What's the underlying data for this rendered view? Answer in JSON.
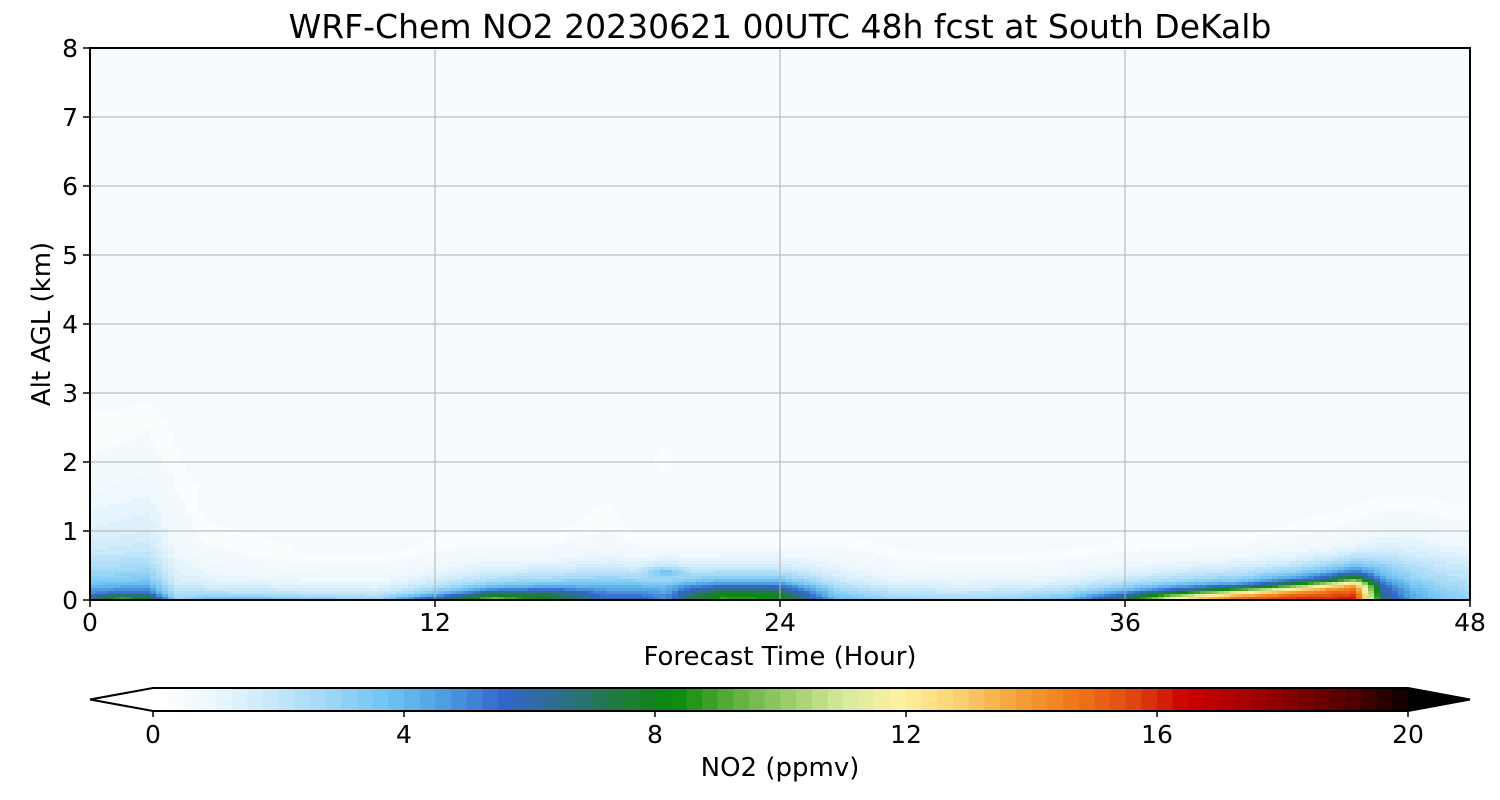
{
  "chart_data": {
    "type": "contourf",
    "title": "WRF-Chem NO2  20230621 00UTC 48h fcst at South DeKalb",
    "xlabel": "Forecast Time (Hour)",
    "ylabel": "Alt AGL (km)",
    "xlim": [
      0,
      48
    ],
    "ylim": [
      0,
      8
    ],
    "xticks": [
      0,
      12,
      24,
      36,
      48
    ],
    "yticks": [
      0,
      1,
      2,
      3,
      4,
      5,
      6,
      7,
      8
    ],
    "grid": true,
    "colorbar": {
      "label": "NO2  (ppmv)",
      "orientation": "horizontal",
      "location": "bottom",
      "range": [
        0,
        20
      ],
      "ticks": [
        0,
        4,
        8,
        12,
        16,
        20
      ],
      "extend": "both",
      "colors": [
        "#ffffff",
        "#eaf6fd",
        "#c6e8fa",
        "#9cd6f6",
        "#6ec3f2",
        "#4d9ddf",
        "#3366cc",
        "#2e6e8a",
        "#1f7a40",
        "#0a8a0a",
        "#5aad3a",
        "#9ccd6a",
        "#d9ea9e",
        "#fff2a0",
        "#fbd070",
        "#f5a23a",
        "#f07818",
        "#e04a10",
        "#cc0000",
        "#a80000",
        "#7a0000",
        "#4a0000",
        "#000000"
      ]
    },
    "profiles": {
      "hours": [
        0,
        1,
        2,
        3,
        4,
        6,
        8,
        10,
        12,
        14,
        16,
        18,
        19,
        20,
        21,
        22,
        24,
        26,
        28,
        30,
        32,
        34,
        36,
        38,
        40,
        42,
        43,
        44,
        45,
        46,
        47,
        48
      ],
      "levels_km": [
        0,
        0.05,
        0.1,
        0.15,
        0.2,
        0.25,
        0.3,
        0.4,
        0.5,
        0.6,
        0.7,
        0.8,
        1.0,
        1.3,
        1.6,
        2.0,
        2.5,
        3.0,
        4.0,
        5.0,
        6.0,
        7.0,
        8.0
      ],
      "no2_ppmv": [
        [
          6.0,
          6.0,
          5.0,
          4.5,
          4.0,
          3.6,
          3.2,
          2.8,
          2.4,
          2.1,
          1.9,
          1.6,
          1.3,
          1.0,
          0.7,
          0.5,
          0.4,
          0.3,
          0.2,
          0.1,
          0.1,
          0.1,
          0.1
        ],
        [
          10.0,
          7.5,
          5.6,
          4.8,
          4.2,
          3.7,
          3.3,
          2.9,
          2.5,
          2.2,
          1.9,
          1.7,
          1.4,
          1.1,
          0.8,
          0.6,
          0.4,
          0.3,
          0.2,
          0.1,
          0.1,
          0.1,
          0.1
        ],
        [
          9.0,
          7.0,
          5.5,
          4.8,
          4.2,
          3.8,
          3.4,
          3.0,
          2.6,
          2.3,
          2.0,
          1.8,
          1.5,
          1.2,
          0.9,
          0.6,
          0.5,
          0.3,
          0.2,
          0.1,
          0.1,
          0.1,
          0.1
        ],
        [
          3.0,
          2.6,
          2.3,
          2.1,
          1.9,
          1.7,
          1.5,
          1.3,
          1.2,
          1.0,
          0.9,
          0.8,
          0.7,
          0.6,
          0.5,
          0.4,
          0.3,
          0.2,
          0.2,
          0.1,
          0.1,
          0.1,
          0.1
        ],
        [
          4.0,
          3.0,
          2.4,
          2.0,
          1.7,
          1.4,
          1.2,
          1.0,
          0.8,
          0.7,
          0.6,
          0.5,
          0.4,
          0.3,
          0.3,
          0.2,
          0.2,
          0.1,
          0.1,
          0.1,
          0.1,
          0.1,
          0.1
        ],
        [
          4.0,
          3.0,
          2.2,
          1.8,
          1.5,
          1.2,
          1.0,
          0.8,
          0.6,
          0.5,
          0.4,
          0.4,
          0.3,
          0.2,
          0.2,
          0.1,
          0.1,
          0.1,
          0.1,
          0.1,
          0.1,
          0.1,
          0.1
        ],
        [
          3.5,
          2.6,
          2.0,
          1.6,
          1.3,
          1.1,
          0.9,
          0.7,
          0.5,
          0.4,
          0.3,
          0.3,
          0.2,
          0.2,
          0.1,
          0.1,
          0.1,
          0.1,
          0.1,
          0.1,
          0.1,
          0.1,
          0.1
        ],
        [
          3.0,
          2.4,
          1.8,
          1.5,
          1.2,
          1.0,
          0.8,
          0.6,
          0.5,
          0.4,
          0.3,
          0.2,
          0.2,
          0.1,
          0.1,
          0.1,
          0.1,
          0.1,
          0.1,
          0.1,
          0.1,
          0.1,
          0.1
        ],
        [
          7.0,
          5.0,
          3.6,
          2.8,
          2.2,
          1.8,
          1.5,
          1.1,
          0.8,
          0.6,
          0.5,
          0.4,
          0.3,
          0.2,
          0.1,
          0.1,
          0.1,
          0.1,
          0.1,
          0.1,
          0.1,
          0.1,
          0.1
        ],
        [
          10.0,
          8.5,
          6.5,
          5.0,
          3.8,
          3.0,
          2.4,
          1.7,
          1.2,
          0.9,
          0.7,
          0.5,
          0.3,
          0.2,
          0.1,
          0.1,
          0.1,
          0.1,
          0.1,
          0.1,
          0.1,
          0.1,
          0.1
        ],
        [
          8.0,
          7.5,
          6.8,
          5.5,
          4.3,
          3.4,
          2.7,
          1.9,
          1.3,
          0.9,
          0.7,
          0.5,
          0.3,
          0.2,
          0.1,
          0.1,
          0.1,
          0.1,
          0.1,
          0.1,
          0.1,
          0.1,
          0.1
        ],
        [
          6.0,
          5.5,
          5.0,
          4.5,
          4.0,
          3.5,
          3.0,
          2.3,
          1.7,
          1.2,
          0.9,
          0.7,
          0.5,
          0.4,
          0.3,
          0.2,
          0.2,
          0.1,
          0.1,
          0.1,
          0.1,
          0.1,
          0.1
        ],
        [
          6.0,
          5.5,
          5.0,
          4.5,
          4.0,
          3.4,
          2.8,
          2.0,
          1.4,
          1.0,
          0.7,
          0.5,
          0.3,
          0.2,
          0.2,
          0.1,
          0.1,
          0.1,
          0.1,
          0.1,
          0.1,
          0.1,
          0.1
        ],
        [
          5.0,
          4.8,
          4.5,
          4.2,
          3.8,
          3.2,
          2.6,
          4.0,
          2.0,
          1.2,
          0.8,
          0.5,
          0.3,
          0.2,
          0.1,
          0.5,
          0.2,
          0.1,
          0.1,
          0.1,
          0.1,
          0.1,
          0.1
        ],
        [
          7.5,
          7.0,
          6.5,
          5.8,
          5.0,
          4.0,
          3.2,
          2.2,
          1.5,
          1.0,
          0.7,
          0.5,
          0.3,
          0.2,
          0.1,
          0.1,
          0.1,
          0.1,
          0.1,
          0.1,
          0.1,
          0.1,
          0.1
        ],
        [
          9.0,
          8.5,
          7.8,
          6.8,
          5.6,
          4.5,
          3.5,
          2.4,
          1.6,
          1.1,
          0.8,
          0.5,
          0.3,
          0.2,
          0.1,
          0.1,
          0.1,
          0.1,
          0.1,
          0.1,
          0.1,
          0.1,
          0.1
        ],
        [
          8.5,
          8.0,
          7.5,
          6.5,
          5.5,
          4.4,
          3.4,
          2.4,
          1.6,
          1.1,
          0.8,
          0.5,
          0.3,
          0.2,
          0.1,
          0.1,
          0.1,
          0.1,
          0.1,
          0.1,
          0.1,
          0.1,
          0.1
        ],
        [
          4.0,
          3.6,
          3.2,
          2.8,
          2.4,
          2.0,
          1.7,
          1.3,
          1.0,
          0.8,
          0.6,
          0.5,
          0.3,
          0.2,
          0.1,
          0.1,
          0.1,
          0.1,
          0.1,
          0.1,
          0.1,
          0.1,
          0.1
        ],
        [
          3.0,
          2.6,
          2.2,
          1.9,
          1.6,
          1.3,
          1.1,
          0.8,
          0.6,
          0.5,
          0.4,
          0.3,
          0.2,
          0.1,
          0.1,
          0.1,
          0.1,
          0.1,
          0.1,
          0.1,
          0.1,
          0.1,
          0.1
        ],
        [
          2.8,
          2.4,
          2.0,
          1.7,
          1.4,
          1.2,
          1.0,
          0.7,
          0.5,
          0.4,
          0.3,
          0.2,
          0.2,
          0.1,
          0.1,
          0.1,
          0.1,
          0.1,
          0.1,
          0.1,
          0.1,
          0.1,
          0.1
        ],
        [
          3.0,
          2.6,
          2.2,
          1.8,
          1.5,
          1.2,
          1.0,
          0.7,
          0.5,
          0.4,
          0.3,
          0.2,
          0.2,
          0.1,
          0.1,
          0.1,
          0.1,
          0.1,
          0.1,
          0.1,
          0.1,
          0.1,
          0.1
        ],
        [
          4.0,
          3.4,
          2.8,
          2.3,
          1.9,
          1.5,
          1.2,
          0.9,
          0.6,
          0.5,
          0.4,
          0.3,
          0.2,
          0.2,
          0.1,
          0.1,
          0.1,
          0.1,
          0.1,
          0.1,
          0.1,
          0.1,
          0.1
        ],
        [
          7.5,
          6.5,
          5.0,
          3.8,
          3.0,
          2.4,
          1.9,
          1.3,
          0.9,
          0.6,
          0.5,
          0.4,
          0.3,
          0.2,
          0.1,
          0.1,
          0.1,
          0.1,
          0.1,
          0.1,
          0.1,
          0.1,
          0.1
        ],
        [
          13.0,
          11.0,
          8.5,
          6.0,
          4.5,
          3.4,
          2.6,
          1.8,
          1.2,
          0.8,
          0.6,
          0.4,
          0.3,
          0.2,
          0.1,
          0.1,
          0.1,
          0.1,
          0.1,
          0.1,
          0.1,
          0.1,
          0.1
        ],
        [
          15.5,
          14.0,
          12.0,
          9.0,
          6.0,
          4.2,
          3.2,
          2.2,
          1.5,
          1.0,
          0.7,
          0.5,
          0.3,
          0.2,
          0.1,
          0.1,
          0.1,
          0.1,
          0.1,
          0.1,
          0.1,
          0.1,
          0.1
        ],
        [
          16.0,
          15.5,
          14.5,
          12.5,
          10.0,
          7.0,
          5.0,
          3.2,
          2.1,
          1.4,
          1.0,
          0.7,
          0.4,
          0.3,
          0.2,
          0.1,
          0.1,
          0.1,
          0.1,
          0.1,
          0.1,
          0.1,
          0.1
        ],
        [
          16.0,
          15.5,
          15.0,
          14.0,
          12.0,
          9.5,
          6.5,
          4.2,
          2.8,
          1.8,
          1.2,
          0.8,
          0.5,
          0.3,
          0.2,
          0.1,
          0.1,
          0.1,
          0.1,
          0.1,
          0.1,
          0.1,
          0.1
        ],
        [
          16.5,
          16.0,
          15.5,
          15.0,
          14.0,
          12.0,
          9.0,
          5.5,
          3.6,
          2.4,
          1.6,
          1.0,
          0.6,
          0.4,
          0.2,
          0.1,
          0.1,
          0.1,
          0.1,
          0.1,
          0.1,
          0.1,
          0.1
        ],
        [
          6.5,
          6.5,
          6.3,
          6.0,
          5.6,
          5.0,
          4.4,
          3.6,
          3.0,
          2.4,
          1.8,
          1.3,
          0.8,
          0.5,
          0.3,
          0.2,
          0.1,
          0.1,
          0.1,
          0.1,
          0.1,
          0.1,
          0.1
        ],
        [
          4.5,
          4.4,
          4.2,
          4.0,
          3.7,
          3.4,
          3.1,
          2.7,
          2.3,
          1.9,
          1.5,
          1.2,
          0.8,
          0.5,
          0.3,
          0.2,
          0.1,
          0.1,
          0.1,
          0.1,
          0.1,
          0.1,
          0.1
        ],
        [
          3.5,
          3.4,
          3.3,
          3.1,
          2.9,
          2.7,
          2.5,
          2.2,
          1.9,
          1.6,
          1.3,
          1.0,
          0.7,
          0.4,
          0.3,
          0.2,
          0.1,
          0.1,
          0.1,
          0.1,
          0.1,
          0.1,
          0.1
        ],
        [
          3.0,
          2.9,
          2.8,
          2.7,
          2.6,
          2.4,
          2.2,
          2.0,
          1.7,
          1.4,
          1.1,
          0.9,
          0.6,
          0.4,
          0.2,
          0.1,
          0.1,
          0.1,
          0.1,
          0.1,
          0.1,
          0.1,
          0.1
        ]
      ]
    }
  }
}
